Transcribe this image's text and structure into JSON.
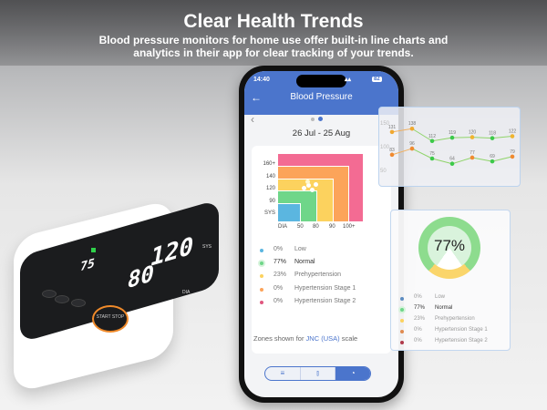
{
  "banner": {
    "title": "Clear Health Trends",
    "subtitle_line1": "Blood pressure monitors for home use offer built-in line charts and",
    "subtitle_line2": "analytics in their app for clear tracking of your trends."
  },
  "device": {
    "sys": "120",
    "dia": "80",
    "pulse": "75",
    "sys_unit": "SYS",
    "dia_unit": "DIA",
    "start_button": "START STOP"
  },
  "phone": {
    "time": "14:40",
    "battery": "82",
    "title": "Blood Pressure",
    "back_icon": "arrow-left-icon",
    "date_range": "26 Jul - 25 Aug",
    "zone_chart": {
      "y_labels": [
        "160+",
        "140",
        "120",
        "90",
        "SYS"
      ],
      "x_labels": [
        "DIA",
        "50",
        "80",
        "90",
        "100+"
      ],
      "zone_colors": {
        "low": "#5bb6e0",
        "normal": "#6fd689",
        "prehypertension": "#fcd25e",
        "stage1": "#fca45a",
        "stage2": "#f36b93"
      }
    },
    "legend": [
      {
        "pct": "0%",
        "label": "Low",
        "color": "#5bb6e0"
      },
      {
        "pct": "77%",
        "label": "Normal",
        "color": "#6fd689"
      },
      {
        "pct": "23%",
        "label": "Prehypertension",
        "color": "#fcd25e"
      },
      {
        "pct": "0%",
        "label": "Hypertension Stage 1",
        "color": "#fca45a"
      },
      {
        "pct": "0%",
        "label": "Hypertension Stage 2",
        "color": "#e0577f"
      }
    ],
    "zones_note_prefix": "Zones shown for ",
    "zones_note_link": "JNC (USA)",
    "zones_note_suffix": " scale",
    "view_tabs": [
      {
        "icon": "list-icon",
        "glyph": "≡"
      },
      {
        "icon": "bar-chart-icon",
        "glyph": "⫾"
      },
      {
        "icon": "pie-chart-icon",
        "glyph": "◔",
        "active": true
      }
    ]
  },
  "chart_data": {
    "type": "line",
    "y_ticks": [
      "150",
      "100",
      "50"
    ],
    "ylim": [
      50,
      160
    ],
    "series": [
      {
        "values": [
          131,
          138,
          112,
          119,
          120,
          118,
          122
        ],
        "colors": [
          "#f0a830",
          "#f0a830",
          "#3cc94a",
          "#3cc94a",
          "#f0b430",
          "#3cc94a",
          "#f0b430"
        ]
      },
      {
        "values": [
          83,
          96,
          75,
          64,
          77,
          69,
          79
        ],
        "colors": [
          "#f08a30",
          "#f08a30",
          "#3cc94a",
          "#3cc94a",
          "#f08a30",
          "#3cc94a",
          "#f08a30"
        ]
      }
    ]
  },
  "donut": {
    "value": "77%",
    "normal": 77,
    "prehypertension": 23,
    "legend": [
      {
        "pct": "0%",
        "label": "Low",
        "color": "#5b8bc0"
      },
      {
        "pct": "77%",
        "label": "Normal",
        "color": "#6fd689"
      },
      {
        "pct": "23%",
        "label": "Prehypertension",
        "color": "#fcd25e"
      },
      {
        "pct": "0%",
        "label": "Hypertension Stage 1",
        "color": "#e08a50"
      },
      {
        "pct": "0%",
        "label": "Hypertension Stage 2",
        "color": "#b03a4a"
      }
    ]
  }
}
